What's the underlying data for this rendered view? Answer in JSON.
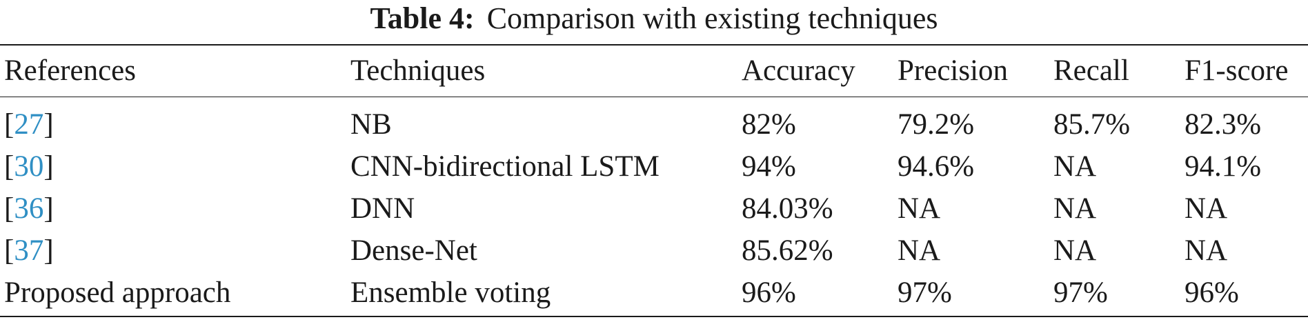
{
  "caption": {
    "label": "Table 4:",
    "text": "Comparison with existing techniques"
  },
  "columns": [
    "References",
    "Techniques",
    "Accuracy",
    "Precision",
    "Recall",
    "F1-score"
  ],
  "rows": [
    {
      "ref_open": "[",
      "ref_num": "27",
      "ref_close": "]",
      "technique": "NB",
      "accuracy": "82%",
      "precision": "79.2%",
      "recall": "85.7%",
      "f1": "82.3%"
    },
    {
      "ref_open": "[",
      "ref_num": "30",
      "ref_close": "]",
      "technique": "CNN-bidirectional LSTM",
      "accuracy": "94%",
      "precision": "94.6%",
      "recall": "NA",
      "f1": "94.1%"
    },
    {
      "ref_open": "[",
      "ref_num": "36",
      "ref_close": "]",
      "technique": "DNN",
      "accuracy": "84.03%",
      "precision": "NA",
      "recall": "NA",
      "f1": "NA"
    },
    {
      "ref_open": "[",
      "ref_num": "37",
      "ref_close": "]",
      "technique": "Dense-Net",
      "accuracy": "85.62%",
      "precision": "NA",
      "recall": "NA",
      "f1": "NA"
    },
    {
      "ref_text": "Proposed approach",
      "technique": "Ensemble voting",
      "accuracy": "96%",
      "precision": "97%",
      "recall": "97%",
      "f1": "96%"
    }
  ],
  "colors": {
    "reference_link": "#2f8fc4",
    "text": "#1a1a1a"
  }
}
